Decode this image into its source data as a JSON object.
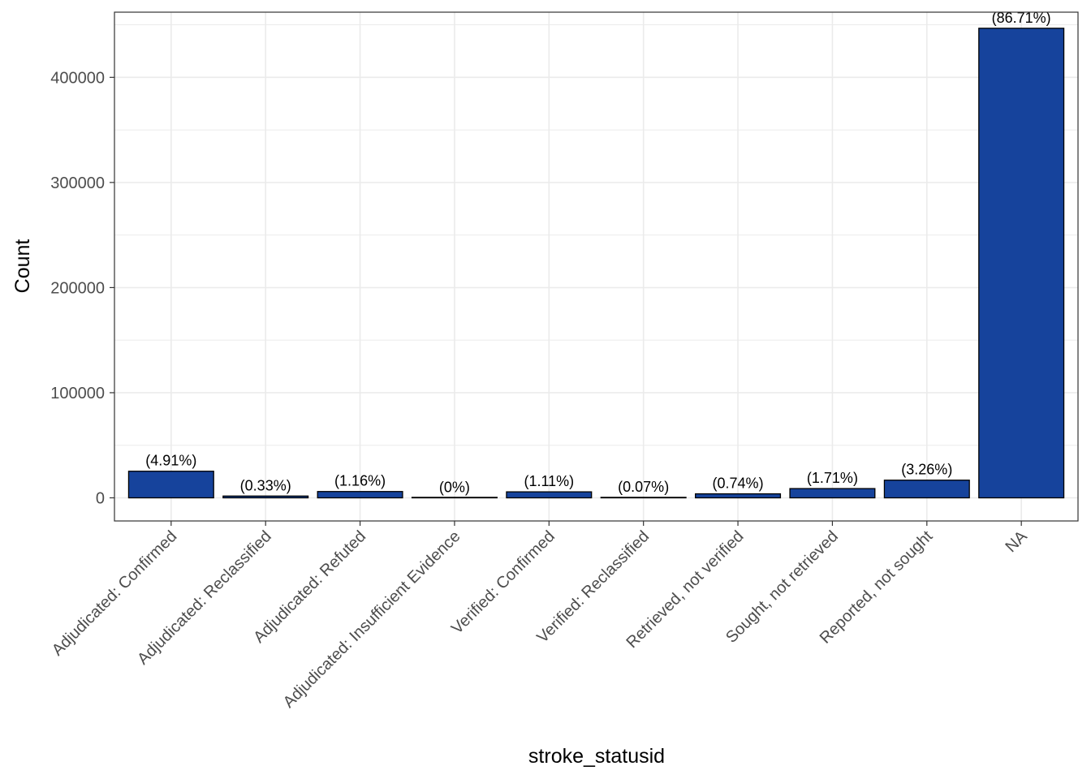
{
  "chart_data": {
    "type": "bar",
    "title": "",
    "xlabel": "stroke_statusid",
    "ylabel": "Count",
    "categories": [
      "Adjudicated: Confirmed",
      "Adjudicated: Reclassified",
      "Adjudicated: Refuted",
      "Adjudicated: Insufficient Evidence",
      "Verified: Confirmed",
      "Verified: Reclassified",
      "Retrieved, not verified",
      "Sought, not retrieved",
      "Reported, not sought",
      "NA"
    ],
    "values": [
      25300,
      1700,
      6000,
      0,
      5700,
      360,
      3800,
      8800,
      16800,
      446700
    ],
    "labels": [
      "(4.91%)",
      "(0.33%)",
      "(1.16%)",
      "(0%)",
      "(1.11%)",
      "(0.07%)",
      "(0.74%)",
      "(1.71%)",
      "(3.26%)",
      "(86.71%)"
    ],
    "yticks": [
      0,
      100000,
      200000,
      300000,
      400000
    ],
    "ylim": [
      -22000,
      462000
    ],
    "grid": true,
    "legend": "none",
    "bar_color": "#16439C",
    "bar_outline": "#000000",
    "grid_color": "#EBEBEB",
    "panel_border": "#333333"
  }
}
